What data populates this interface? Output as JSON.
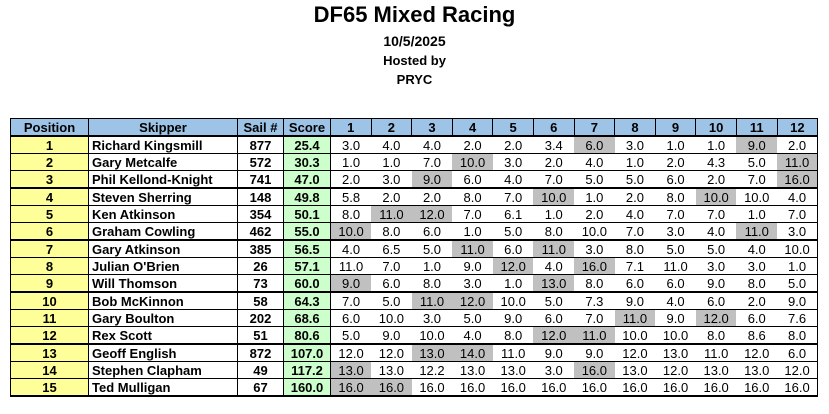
{
  "header": {
    "title": "DF65 Mixed Racing",
    "date": "10/5/2025",
    "hosted_label": "Hosted by",
    "host": "PRYC"
  },
  "table": {
    "headers": [
      "Position",
      "Skipper",
      "Sail #",
      "Score",
      "1",
      "2",
      "3",
      "4",
      "5",
      "6",
      "7",
      "8",
      "9",
      "10",
      "11",
      "12"
    ],
    "rows": [
      {
        "position": "1",
        "skipper": "Richard Kingsmill",
        "sail": "877",
        "score": "25.4",
        "races": [
          "3.0",
          "4.0",
          "4.0",
          "2.0",
          "2.0",
          "3.4",
          "6.0",
          "3.0",
          "1.0",
          "1.0",
          "9.0",
          "2.0"
        ],
        "discarded": [
          6,
          10
        ]
      },
      {
        "position": "2",
        "skipper": "Gary Metcalfe",
        "sail": "572",
        "score": "30.3",
        "races": [
          "1.0",
          "1.0",
          "7.0",
          "10.0",
          "3.0",
          "2.0",
          "4.0",
          "1.0",
          "2.0",
          "4.3",
          "5.0",
          "11.0"
        ],
        "discarded": [
          3,
          11
        ]
      },
      {
        "position": "3",
        "skipper": "Phil Kellond-Knight",
        "sail": "741",
        "score": "47.0",
        "races": [
          "2.0",
          "3.0",
          "9.0",
          "6.0",
          "4.0",
          "7.0",
          "5.0",
          "5.0",
          "6.0",
          "2.0",
          "7.0",
          "16.0"
        ],
        "discarded": [
          2,
          11
        ]
      },
      {
        "position": "4",
        "skipper": "Steven Sherring",
        "sail": "148",
        "score": "49.8",
        "races": [
          "5.8",
          "2.0",
          "2.0",
          "8.0",
          "7.0",
          "10.0",
          "1.0",
          "2.0",
          "8.0",
          "10.0",
          "10.0",
          "4.0"
        ],
        "discarded": [
          5,
          9
        ]
      },
      {
        "position": "5",
        "skipper": "Ken Atkinson",
        "sail": "354",
        "score": "50.1",
        "races": [
          "8.0",
          "11.0",
          "12.0",
          "7.0",
          "6.1",
          "1.0",
          "2.0",
          "4.0",
          "7.0",
          "7.0",
          "1.0",
          "7.0"
        ],
        "discarded": [
          1,
          2
        ]
      },
      {
        "position": "6",
        "skipper": "Graham Cowling",
        "sail": "462",
        "score": "55.0",
        "races": [
          "10.0",
          "8.0",
          "6.0",
          "1.0",
          "5.0",
          "8.0",
          "10.0",
          "7.0",
          "3.0",
          "4.0",
          "11.0",
          "3.0"
        ],
        "discarded": [
          0,
          10
        ]
      },
      {
        "position": "7",
        "skipper": "Gary Atkinson",
        "sail": "385",
        "score": "56.5",
        "races": [
          "4.0",
          "6.5",
          "5.0",
          "11.0",
          "6.0",
          "11.0",
          "3.0",
          "8.0",
          "5.0",
          "5.0",
          "4.0",
          "10.0"
        ],
        "discarded": [
          3,
          5
        ]
      },
      {
        "position": "8",
        "skipper": "Julian O'Brien",
        "sail": "26",
        "score": "57.1",
        "races": [
          "11.0",
          "7.0",
          "1.0",
          "9.0",
          "12.0",
          "4.0",
          "16.0",
          "7.1",
          "11.0",
          "3.0",
          "3.0",
          "1.0"
        ],
        "discarded": [
          4,
          6
        ]
      },
      {
        "position": "9",
        "skipper": "Will Thomson",
        "sail": "73",
        "score": "60.0",
        "races": [
          "9.0",
          "6.0",
          "8.0",
          "3.0",
          "1.0",
          "13.0",
          "8.0",
          "6.0",
          "6.0",
          "9.0",
          "8.0",
          "5.0"
        ],
        "discarded": [
          0,
          5
        ]
      },
      {
        "position": "10",
        "skipper": "Bob McKinnon",
        "sail": "58",
        "score": "64.3",
        "races": [
          "7.0",
          "5.0",
          "11.0",
          "12.0",
          "10.0",
          "5.0",
          "7.3",
          "9.0",
          "4.0",
          "6.0",
          "2.0",
          "9.0"
        ],
        "discarded": [
          2,
          3
        ]
      },
      {
        "position": "11",
        "skipper": "Gary Boulton",
        "sail": "202",
        "score": "68.6",
        "races": [
          "6.0",
          "10.0",
          "3.0",
          "5.0",
          "9.0",
          "6.0",
          "7.0",
          "11.0",
          "9.0",
          "12.0",
          "6.0",
          "7.6"
        ],
        "discarded": [
          7,
          9
        ]
      },
      {
        "position": "12",
        "skipper": "Rex Scott",
        "sail": "51",
        "score": "80.6",
        "races": [
          "5.0",
          "9.0",
          "10.0",
          "4.0",
          "8.0",
          "12.0",
          "11.0",
          "10.0",
          "10.0",
          "8.0",
          "8.6",
          "8.0"
        ],
        "discarded": [
          5,
          6
        ]
      },
      {
        "position": "13",
        "skipper": "Geoff English",
        "sail": "872",
        "score": "107.0",
        "races": [
          "12.0",
          "12.0",
          "13.0",
          "14.0",
          "11.0",
          "9.0",
          "9.0",
          "12.0",
          "13.0",
          "11.0",
          "12.0",
          "6.0"
        ],
        "discarded": [
          2,
          3
        ]
      },
      {
        "position": "14",
        "skipper": "Stephen Clapham",
        "sail": "49",
        "score": "117.2",
        "races": [
          "13.0",
          "13.0",
          "12.2",
          "13.0",
          "13.0",
          "3.0",
          "16.0",
          "13.0",
          "12.0",
          "13.0",
          "13.0",
          "12.0"
        ],
        "discarded": [
          0,
          6
        ]
      },
      {
        "position": "15",
        "skipper": "Ted Mulligan",
        "sail": "67",
        "score": "160.0",
        "races": [
          "16.0",
          "16.0",
          "16.0",
          "16.0",
          "16.0",
          "16.0",
          "16.0",
          "16.0",
          "16.0",
          "16.0",
          "16.0",
          "16.0"
        ],
        "discarded": [
          0,
          1
        ]
      }
    ]
  }
}
